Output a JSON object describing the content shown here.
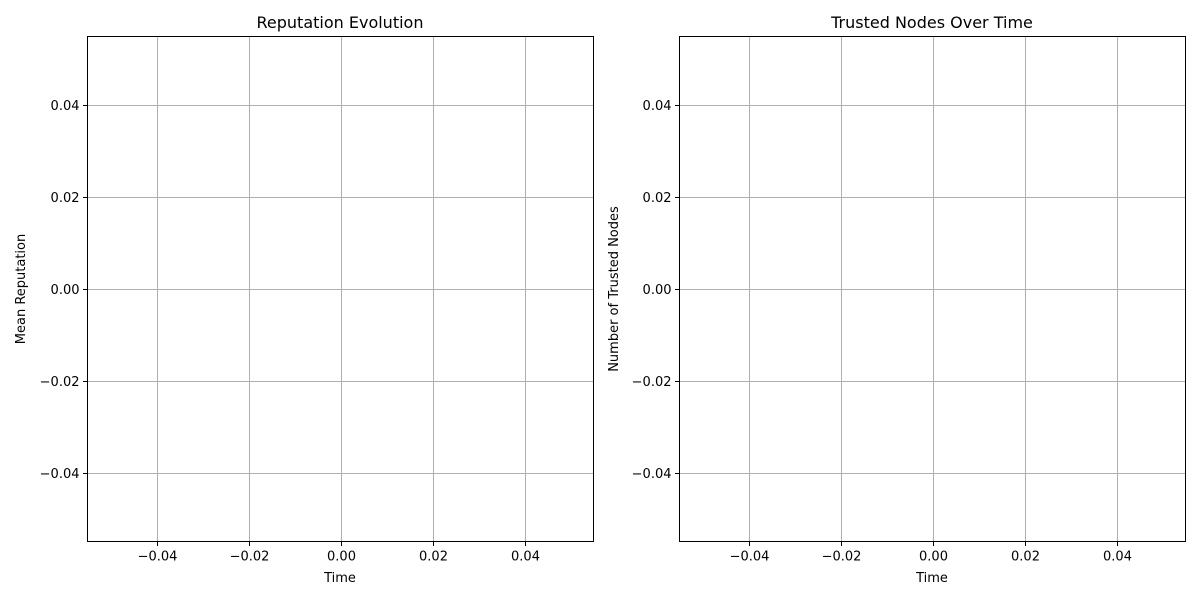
{
  "chart_data": [
    {
      "type": "line",
      "title": "Reputation Evolution",
      "xlabel": "Time",
      "ylabel": "Mean Reputation",
      "series": [],
      "xlim": [
        -0.055,
        0.055
      ],
      "ylim": [
        -0.055,
        0.055
      ],
      "xticks": [
        "−0.04",
        "−0.02",
        "0.00",
        "0.02",
        "0.04"
      ],
      "yticks": [
        "−0.04",
        "−0.02",
        "0.00",
        "0.02",
        "0.04"
      ],
      "grid": true
    },
    {
      "type": "line",
      "title": "Trusted Nodes Over Time",
      "xlabel": "Time",
      "ylabel": "Number of Trusted Nodes",
      "series": [],
      "xlim": [
        -0.055,
        0.055
      ],
      "ylim": [
        -0.055,
        0.055
      ],
      "xticks": [
        "−0.04",
        "−0.02",
        "0.00",
        "0.02",
        "0.04"
      ],
      "yticks": [
        "−0.04",
        "−0.02",
        "0.00",
        "0.02",
        "0.04"
      ],
      "grid": true
    }
  ]
}
